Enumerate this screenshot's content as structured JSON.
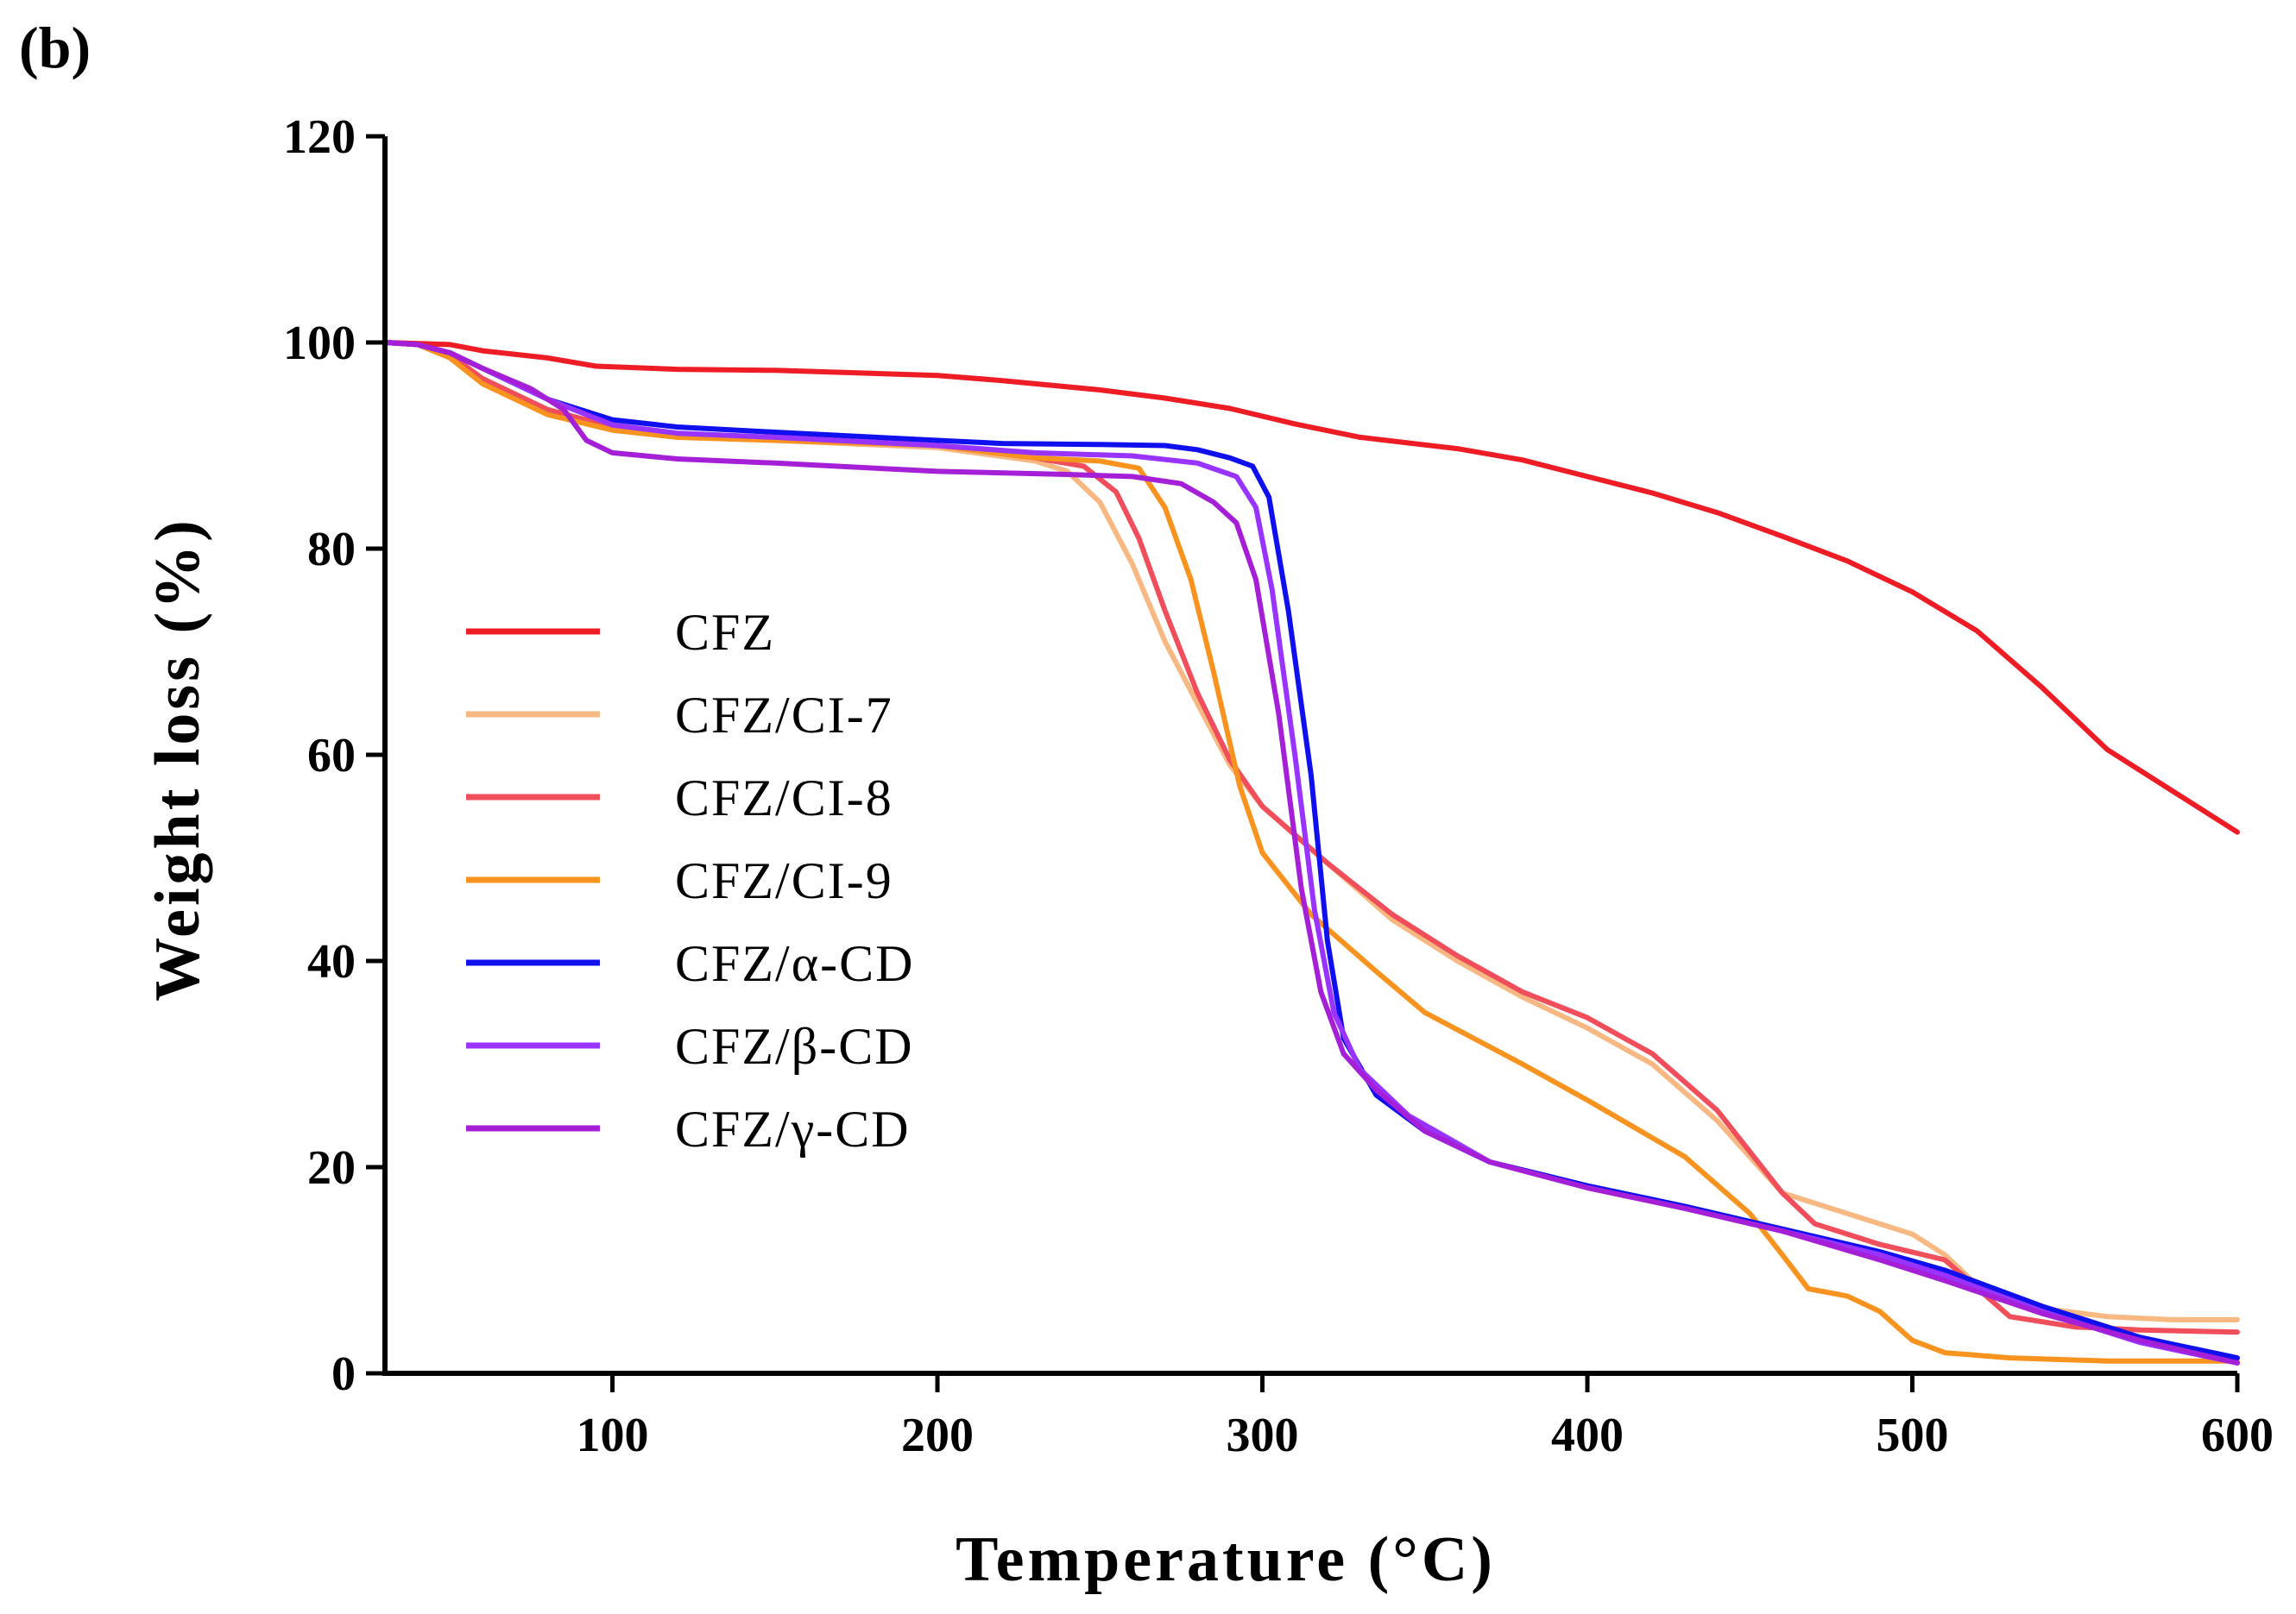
{
  "chart_data": {
    "type": "line",
    "panel_label": "(b)",
    "title": "",
    "xlabel": "Temperature (°C)",
    "ylabel": "Weight loss (%)",
    "xlim": [
      30,
      600
    ],
    "ylim": [
      0,
      120
    ],
    "xticks": [
      100,
      200,
      300,
      400,
      500,
      600
    ],
    "yticks": [
      0,
      20,
      40,
      60,
      80,
      100,
      120
    ],
    "grid": false,
    "legend_position": "left-center",
    "series": [
      {
        "name": "CFZ",
        "color": "#ee1c24",
        "points": [
          [
            30,
            100
          ],
          [
            50,
            99.8
          ],
          [
            60,
            99.2
          ],
          [
            80,
            98.5
          ],
          [
            95,
            97.7
          ],
          [
            120,
            97.4
          ],
          [
            150,
            97.3
          ],
          [
            200,
            96.8
          ],
          [
            220,
            96.3
          ],
          [
            250,
            95.4
          ],
          [
            270,
            94.6
          ],
          [
            290,
            93.6
          ],
          [
            310,
            92.1
          ],
          [
            330,
            90.8
          ],
          [
            360,
            89.7
          ],
          [
            380,
            88.6
          ],
          [
            400,
            87.0
          ],
          [
            420,
            85.4
          ],
          [
            440,
            83.5
          ],
          [
            460,
            81.2
          ],
          [
            480,
            78.8
          ],
          [
            500,
            75.8
          ],
          [
            520,
            72.0
          ],
          [
            540,
            66.5
          ],
          [
            560,
            60.5
          ],
          [
            580,
            56.5
          ],
          [
            600,
            52.5
          ]
        ]
      },
      {
        "name": "CFZ/CI-7",
        "color": "#f7b882",
        "points": [
          [
            30,
            100
          ],
          [
            40,
            99.8
          ],
          [
            50,
            98.8
          ],
          [
            60,
            96.5
          ],
          [
            80,
            93.5
          ],
          [
            100,
            91.5
          ],
          [
            120,
            90.8
          ],
          [
            150,
            90.5
          ],
          [
            200,
            89.8
          ],
          [
            230,
            88.5
          ],
          [
            240,
            87.5
          ],
          [
            250,
            84.5
          ],
          [
            260,
            78.5
          ],
          [
            270,
            71.0
          ],
          [
            280,
            65.0
          ],
          [
            290,
            59.0
          ],
          [
            300,
            55.0
          ],
          [
            320,
            49.5
          ],
          [
            340,
            44.0
          ],
          [
            360,
            40.0
          ],
          [
            380,
            36.5
          ],
          [
            400,
            33.5
          ],
          [
            420,
            30.0
          ],
          [
            440,
            24.5
          ],
          [
            460,
            17.5
          ],
          [
            480,
            15.5
          ],
          [
            500,
            13.5
          ],
          [
            510,
            11.5
          ],
          [
            520,
            8.5
          ],
          [
            540,
            6.3
          ],
          [
            560,
            5.5
          ],
          [
            580,
            5.2
          ],
          [
            600,
            5.2
          ]
        ]
      },
      {
        "name": "CFZ/CI-8",
        "color": "#ef4e5a",
        "points": [
          [
            30,
            100
          ],
          [
            40,
            99.8
          ],
          [
            50,
            98.8
          ],
          [
            60,
            96.5
          ],
          [
            80,
            93.5
          ],
          [
            100,
            91.8
          ],
          [
            120,
            91.0
          ],
          [
            150,
            90.8
          ],
          [
            200,
            90.0
          ],
          [
            230,
            88.8
          ],
          [
            245,
            88.0
          ],
          [
            255,
            85.5
          ],
          [
            262,
            81.0
          ],
          [
            270,
            74.0
          ],
          [
            280,
            66.0
          ],
          [
            290,
            59.5
          ],
          [
            300,
            55.0
          ],
          [
            320,
            49.5
          ],
          [
            340,
            44.5
          ],
          [
            360,
            40.5
          ],
          [
            380,
            37.0
          ],
          [
            400,
            34.5
          ],
          [
            420,
            31.0
          ],
          [
            440,
            25.5
          ],
          [
            460,
            17.5
          ],
          [
            470,
            14.5
          ],
          [
            490,
            12.5
          ],
          [
            510,
            11.0
          ],
          [
            530,
            5.5
          ],
          [
            550,
            4.5
          ],
          [
            570,
            4.2
          ],
          [
            600,
            4.0
          ]
        ]
      },
      {
        "name": "CFZ/CI-9",
        "color": "#f7931e",
        "points": [
          [
            30,
            100
          ],
          [
            40,
            99.8
          ],
          [
            50,
            98.5
          ],
          [
            60,
            96.0
          ],
          [
            80,
            93.0
          ],
          [
            100,
            91.5
          ],
          [
            120,
            90.8
          ],
          [
            150,
            90.5
          ],
          [
            200,
            90.0
          ],
          [
            230,
            88.8
          ],
          [
            250,
            88.5
          ],
          [
            262,
            87.8
          ],
          [
            270,
            84.0
          ],
          [
            278,
            77.0
          ],
          [
            285,
            68.0
          ],
          [
            293,
            57.0
          ],
          [
            300,
            50.5
          ],
          [
            315,
            44.5
          ],
          [
            335,
            39.0
          ],
          [
            350,
            35.0
          ],
          [
            380,
            30.0
          ],
          [
            400,
            26.5
          ],
          [
            430,
            21.0
          ],
          [
            450,
            15.5
          ],
          [
            460,
            11.5
          ],
          [
            468,
            8.2
          ],
          [
            480,
            7.5
          ],
          [
            490,
            6.0
          ],
          [
            500,
            3.2
          ],
          [
            510,
            2.0
          ],
          [
            530,
            1.5
          ],
          [
            560,
            1.2
          ],
          [
            600,
            1.2
          ]
        ]
      },
      {
        "name": "CFZ/α-CD",
        "color": "#1010ee",
        "points": [
          [
            30,
            100
          ],
          [
            40,
            99.8
          ],
          [
            50,
            99.0
          ],
          [
            60,
            97.5
          ],
          [
            80,
            94.5
          ],
          [
            100,
            92.5
          ],
          [
            120,
            91.8
          ],
          [
            150,
            91.3
          ],
          [
            200,
            90.5
          ],
          [
            220,
            90.2
          ],
          [
            250,
            90.1
          ],
          [
            270,
            90.0
          ],
          [
            280,
            89.6
          ],
          [
            290,
            88.8
          ],
          [
            297,
            88.0
          ],
          [
            302,
            85.0
          ],
          [
            308,
            74.0
          ],
          [
            315,
            58.0
          ],
          [
            320,
            42.0
          ],
          [
            325,
            32.5
          ],
          [
            335,
            27.0
          ],
          [
            350,
            23.5
          ],
          [
            370,
            20.5
          ],
          [
            400,
            18.2
          ],
          [
            430,
            16.2
          ],
          [
            460,
            14.0
          ],
          [
            490,
            11.8
          ],
          [
            510,
            10.0
          ],
          [
            540,
            6.5
          ],
          [
            570,
            3.5
          ],
          [
            600,
            1.5
          ]
        ]
      },
      {
        "name": "CFZ/β-CD",
        "color": "#9933ff",
        "points": [
          [
            30,
            100
          ],
          [
            40,
            99.8
          ],
          [
            50,
            99.0
          ],
          [
            60,
            97.5
          ],
          [
            80,
            94.5
          ],
          [
            100,
            92.0
          ],
          [
            120,
            91.2
          ],
          [
            150,
            90.8
          ],
          [
            200,
            90.0
          ],
          [
            230,
            89.3
          ],
          [
            260,
            89.0
          ],
          [
            280,
            88.3
          ],
          [
            292,
            87.0
          ],
          [
            298,
            84.0
          ],
          [
            303,
            76.0
          ],
          [
            310,
            60.0
          ],
          [
            316,
            45.0
          ],
          [
            322,
            35.0
          ],
          [
            330,
            29.5
          ],
          [
            345,
            25.0
          ],
          [
            370,
            20.5
          ],
          [
            400,
            18.0
          ],
          [
            430,
            16.0
          ],
          [
            460,
            13.8
          ],
          [
            490,
            11.5
          ],
          [
            510,
            9.5
          ],
          [
            540,
            6.0
          ],
          [
            570,
            3.0
          ],
          [
            600,
            1.0
          ]
        ]
      },
      {
        "name": "CFZ/γ-CD",
        "color": "#a51fd6",
        "points": [
          [
            30,
            100
          ],
          [
            40,
            99.8
          ],
          [
            50,
            99.0
          ],
          [
            60,
            97.5
          ],
          [
            75,
            95.5
          ],
          [
            85,
            93.5
          ],
          [
            92,
            90.5
          ],
          [
            100,
            89.3
          ],
          [
            120,
            88.7
          ],
          [
            150,
            88.3
          ],
          [
            200,
            87.5
          ],
          [
            240,
            87.2
          ],
          [
            260,
            87.0
          ],
          [
            275,
            86.3
          ],
          [
            285,
            84.5
          ],
          [
            292,
            82.5
          ],
          [
            298,
            77.0
          ],
          [
            305,
            64.0
          ],
          [
            312,
            47.0
          ],
          [
            318,
            37.0
          ],
          [
            325,
            31.0
          ],
          [
            335,
            27.5
          ],
          [
            350,
            23.5
          ],
          [
            370,
            20.5
          ],
          [
            400,
            18.0
          ],
          [
            430,
            16.0
          ],
          [
            460,
            13.8
          ],
          [
            490,
            11.0
          ],
          [
            510,
            9.0
          ],
          [
            540,
            5.8
          ],
          [
            570,
            3.2
          ],
          [
            600,
            1.0
          ]
        ]
      }
    ]
  }
}
